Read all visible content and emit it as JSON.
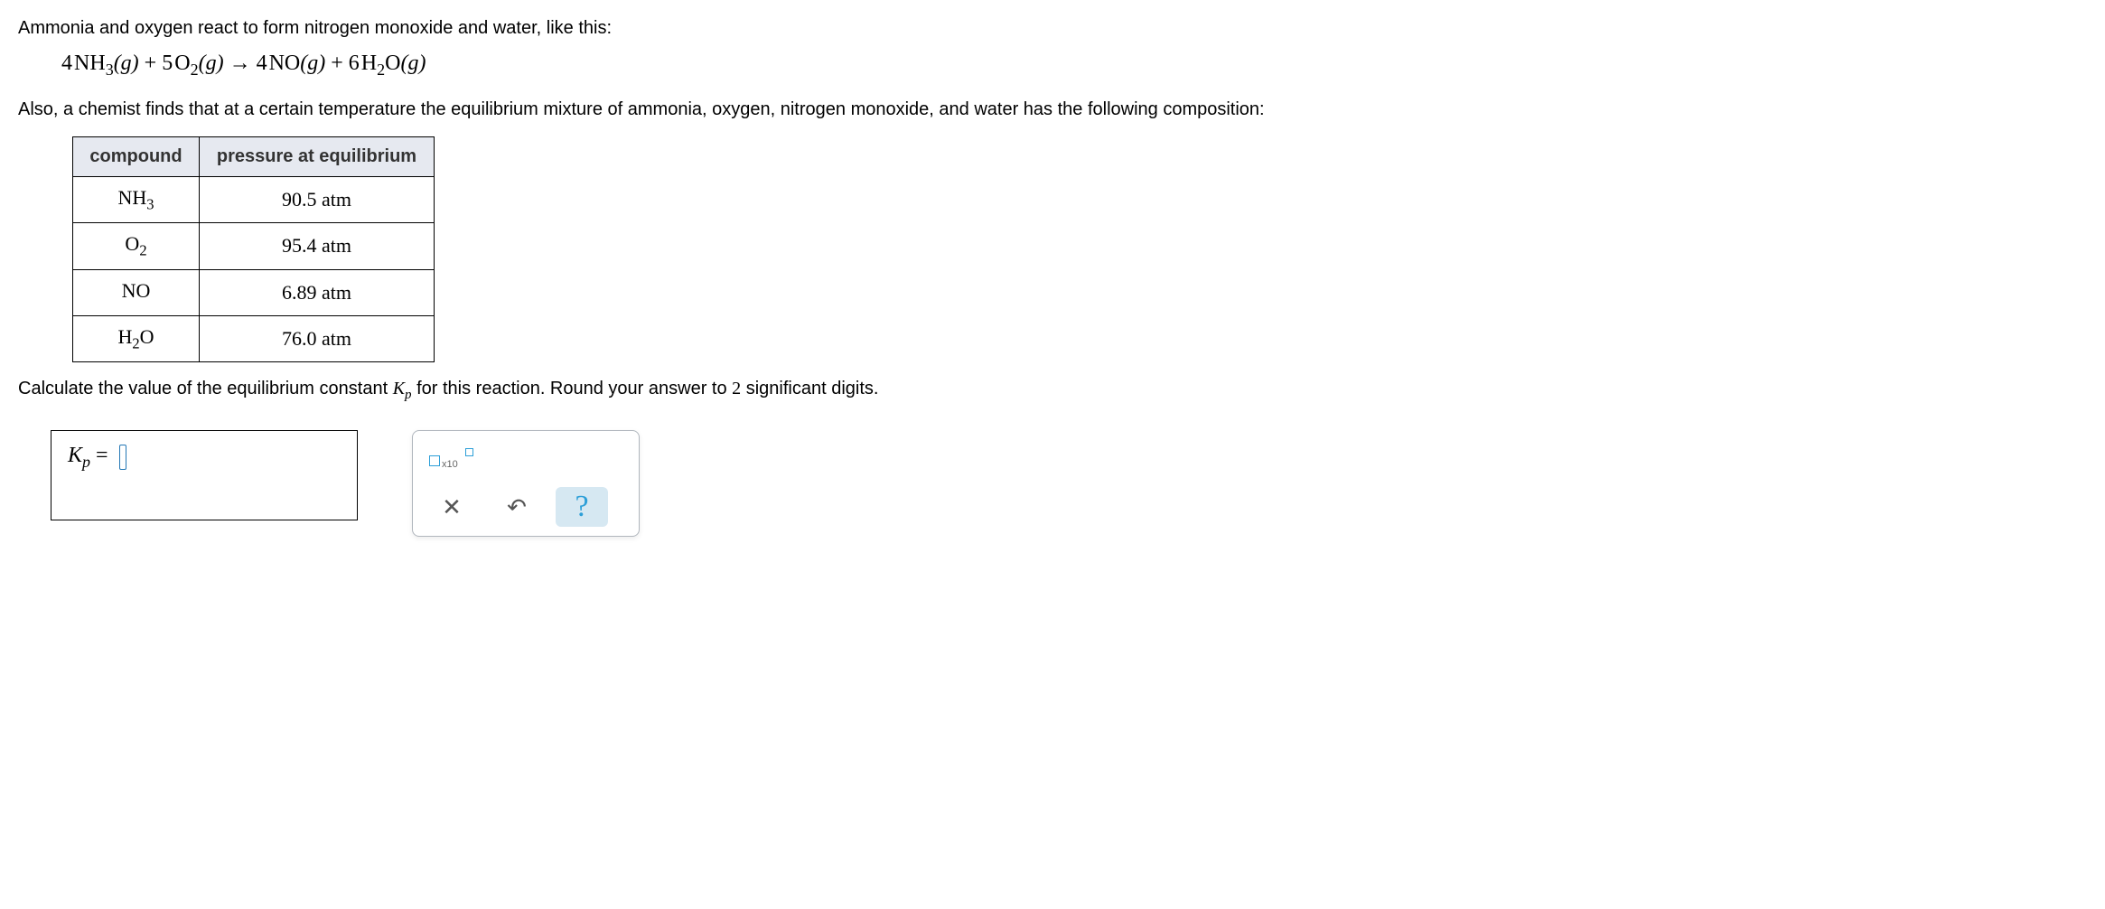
{
  "intro1": "Ammonia and oxygen react to form nitrogen monoxide and water, like this:",
  "equation": {
    "c1": "4",
    "sp1": "NH",
    "sub1": "3",
    "ph1": "(g)",
    "plus1": " + ",
    "c2": "5",
    "sp2": "O",
    "sub2": "2",
    "ph2": "(g)",
    "arrow": "  →  ",
    "c3": "4",
    "sp3": "NO",
    "ph3": "(g)",
    "plus2": " + ",
    "c4": "6",
    "sp4": "H",
    "sub4": "2",
    "sp4b": "O",
    "ph4": "(g)"
  },
  "intro2": "Also, a chemist finds that at a certain temperature the equilibrium mixture of ammonia, oxygen, nitrogen monoxide, and water has the following composition:",
  "table": {
    "h1": "compound",
    "h2": "pressure at equilibrium",
    "rows": [
      {
        "c_pre": "NH",
        "c_sub": "3",
        "c_post": "",
        "p": "90.5 atm"
      },
      {
        "c_pre": "O",
        "c_sub": "2",
        "c_post": "",
        "p": "95.4 atm"
      },
      {
        "c_pre": "NO",
        "c_sub": "",
        "c_post": "",
        "p": "6.89 atm"
      },
      {
        "c_pre": "H",
        "c_sub": "2",
        "c_post": "O",
        "p": "76.0 atm"
      }
    ]
  },
  "calc_a": "Calculate the value of the equilibrium constant ",
  "calc_k": "K",
  "calc_p": "p",
  "calc_b": " for this reaction. Round your answer to ",
  "calc_sig": "2",
  "calc_c": " significant digits.",
  "ans_k": "K",
  "ans_p": "p",
  "ans_eq": " = ",
  "tool_x10": "x10",
  "icon_x": "✕",
  "icon_undo": "↶",
  "icon_help": "?"
}
